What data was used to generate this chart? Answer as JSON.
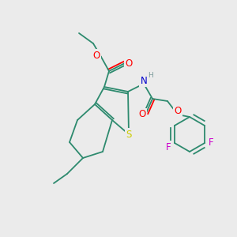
{
  "background_color": "#ebebeb",
  "figsize": [
    3.0,
    3.0
  ],
  "dpi": 100,
  "bond_color": "#2d8a6e",
  "atom_colors": {
    "O": "#ff0000",
    "N": "#0000cc",
    "S": "#cccc00",
    "F": "#cc00cc",
    "H": "#7a9a9a",
    "C": "#2d8a6e"
  },
  "font_size": 7.5,
  "bond_width": 1.3
}
